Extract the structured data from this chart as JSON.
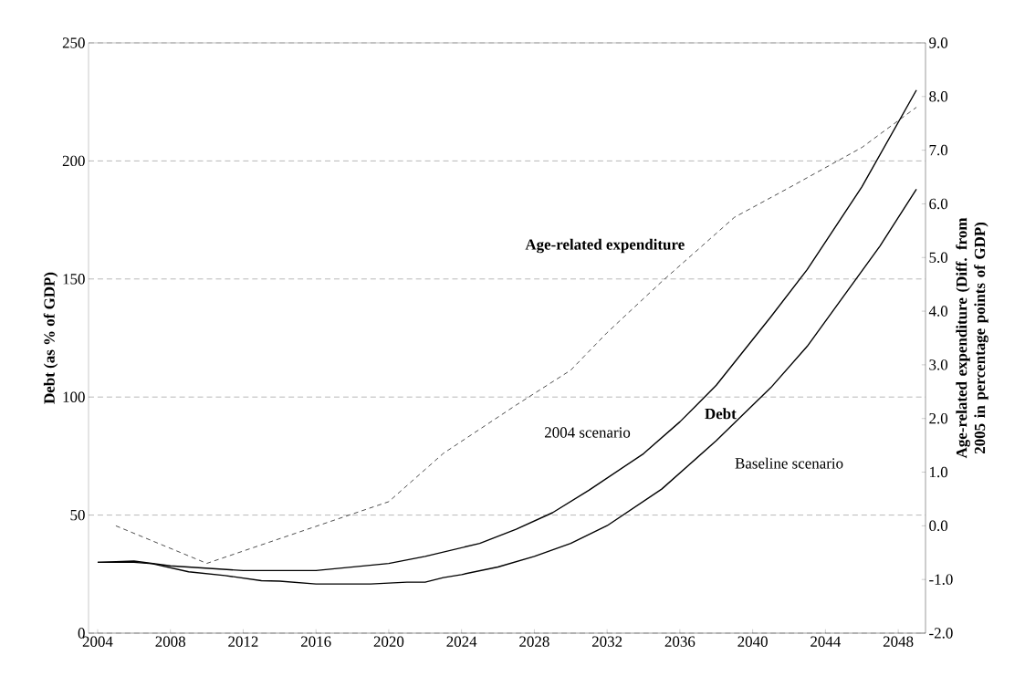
{
  "chart_data": {
    "type": "line",
    "ylabel": "Debt (as % of GDP)",
    "y2label": "Age-related  expenditure (Diff. from 2005 in percentage points of GDP)",
    "xlim": [
      2003.5,
      2049.5
    ],
    "xticks": [
      2004,
      2008,
      2012,
      2016,
      2020,
      2024,
      2028,
      2032,
      2036,
      2040,
      2044,
      2048
    ],
    "ylim": [
      0,
      250
    ],
    "yticks": [
      0,
      50,
      100,
      150,
      200,
      250
    ],
    "y2lim": [
      -2,
      9
    ],
    "y2ticks": [
      {
        "value": -2,
        "label": "-2.0"
      },
      {
        "value": -1,
        "label": "-1.0"
      },
      {
        "value": 0,
        "label": "0.0"
      },
      {
        "value": 1,
        "label": "1.0"
      },
      {
        "value": 2,
        "label": "2.0"
      },
      {
        "value": 3,
        "label": "3.0"
      },
      {
        "value": 4,
        "label": "4.0"
      },
      {
        "value": 5,
        "label": "5.0"
      },
      {
        "value": 6,
        "label": "6.0"
      },
      {
        "value": 7,
        "label": "7.0"
      },
      {
        "value": 8,
        "label": "8.0"
      },
      {
        "value": 9,
        "label": "9.0"
      }
    ],
    "grid": "y",
    "marker": "none",
    "series": [
      {
        "color": "#000000",
        "line_style": "solid",
        "x": [
          2004,
          2006,
          2008,
          2010,
          2012,
          2016,
          2020,
          2022,
          2025,
          2027,
          2029,
          2031,
          2034,
          2036,
          2038,
          2041,
          2043,
          2046,
          2049
        ],
        "values": [
          30,
          30.5,
          28.5,
          27.5,
          26.5,
          26.5,
          29.5,
          32.5,
          38,
          44,
          51,
          60.5,
          76,
          89.5,
          105,
          134,
          154,
          189,
          230
        ]
      },
      {
        "color": "#000000",
        "line_style": "solid",
        "x": [
          2004,
          2006,
          2007,
          2009,
          2011,
          2013,
          2014,
          2016,
          2019,
          2021,
          2022,
          2023,
          2024,
          2026,
          2028,
          2030,
          2032,
          2035,
          2038,
          2041,
          2043,
          2047,
          2049
        ],
        "values": [
          30,
          30,
          29.4,
          26,
          24.4,
          22.2,
          22,
          20.8,
          20.8,
          21.6,
          21.6,
          23.5,
          24.8,
          28,
          32.5,
          38,
          45.5,
          61,
          81.5,
          104,
          121.5,
          164,
          188
        ]
      },
      {
        "color": "#000000",
        "line_style": "dashed",
        "axis": "y2",
        "x": [
          2005,
          2010,
          2020,
          2023,
          2027,
          2030,
          2032,
          2035,
          2039,
          2042,
          2046,
          2049
        ],
        "values": [
          0.0,
          -0.7,
          0.45,
          1.35,
          2.25,
          2.9,
          3.6,
          4.55,
          5.75,
          6.3,
          7.05,
          7.8
        ]
      }
    ],
    "annotations": [
      "Age-related expenditure",
      "2004 scenario",
      "Debt",
      "Baseline scenario"
    ]
  }
}
